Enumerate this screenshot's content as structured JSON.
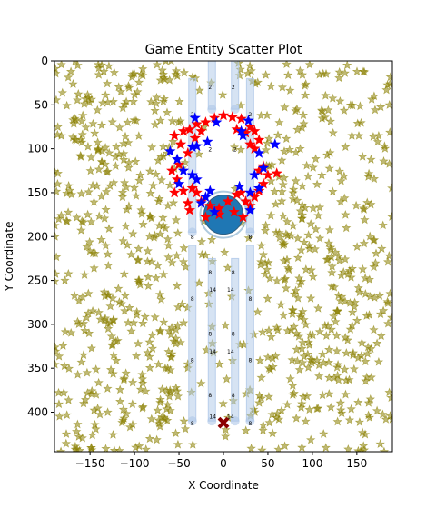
{
  "chart_data": {
    "type": "scatter",
    "title": "Game Entity Scatter Plot",
    "xlabel": "X Coordinate",
    "ylabel": "Y Coordinate",
    "xlim": [
      -190,
      190
    ],
    "ylim": [
      445,
      0
    ],
    "y_inverted": true,
    "grid": false,
    "xticks": [
      -150,
      -100,
      -50,
      0,
      50,
      100,
      150
    ],
    "yticks": [
      0,
      50,
      100,
      150,
      200,
      250,
      300,
      350,
      400
    ],
    "colors": {
      "background_stars": "#8b8000",
      "red_team": "#ff0000",
      "blue_team": "#0000ff",
      "lanes": "#aec7e8",
      "central_object": "#1f77b4",
      "marker_x": "#8b0000"
    },
    "central_object": {
      "x": 0,
      "y": 175,
      "radius": 22,
      "shape": "circle"
    },
    "marker_x": {
      "x": 0,
      "y": 412,
      "shape": "x"
    },
    "lanes": [
      {
        "x": -13,
        "y_start": 0,
        "y_end": 55,
        "label": "2"
      },
      {
        "x": 13,
        "y_start": 0,
        "y_end": 55,
        "label": "2"
      },
      {
        "x": -35,
        "y_start": 20,
        "y_end": 195,
        "label": "2"
      },
      {
        "x": 30,
        "y_start": 20,
        "y_end": 195,
        "label": "2"
      },
      {
        "x": -35,
        "y_start": 210,
        "y_end": 410,
        "label": "8"
      },
      {
        "x": 30,
        "y_start": 210,
        "y_end": 410,
        "label": "8"
      },
      {
        "x": -13,
        "y_start": 225,
        "y_end": 410,
        "label": "8"
      },
      {
        "x": 13,
        "y_start": 225,
        "y_end": 410,
        "label": "8"
      }
    ],
    "lane_labels": [
      {
        "x": -15,
        "y": 32,
        "text": "2"
      },
      {
        "x": 11,
        "y": 32,
        "text": "2"
      },
      {
        "x": -35,
        "y": 63,
        "text": "2"
      },
      {
        "x": 30,
        "y": 63,
        "text": "2"
      },
      {
        "x": -15,
        "y": 103,
        "text": "2"
      },
      {
        "x": 13,
        "y": 103,
        "text": "2"
      },
      {
        "x": -35,
        "y": 203,
        "text": "8"
      },
      {
        "x": 30,
        "y": 203,
        "text": "8"
      },
      {
        "x": -15,
        "y": 243,
        "text": "8"
      },
      {
        "x": 11,
        "y": 243,
        "text": "8"
      },
      {
        "x": -35,
        "y": 273,
        "text": "8"
      },
      {
        "x": 30,
        "y": 273,
        "text": "8"
      },
      {
        "x": -12,
        "y": 263,
        "text": "14"
      },
      {
        "x": 8,
        "y": 263,
        "text": "14"
      },
      {
        "x": -15,
        "y": 313,
        "text": "8"
      },
      {
        "x": 11,
        "y": 313,
        "text": "8"
      },
      {
        "x": -35,
        "y": 343,
        "text": "8"
      },
      {
        "x": 30,
        "y": 343,
        "text": "8"
      },
      {
        "x": -12,
        "y": 333,
        "text": "14"
      },
      {
        "x": 8,
        "y": 333,
        "text": "14"
      },
      {
        "x": -15,
        "y": 383,
        "text": "8"
      },
      {
        "x": 11,
        "y": 383,
        "text": "8"
      },
      {
        "x": -35,
        "y": 415,
        "text": "8"
      },
      {
        "x": 30,
        "y": 415,
        "text": "8"
      },
      {
        "x": -12,
        "y": 407,
        "text": "14"
      },
      {
        "x": 8,
        "y": 407,
        "text": "14"
      }
    ],
    "red_team": [
      [
        -55,
        85
      ],
      [
        -45,
        80
      ],
      [
        -38,
        78
      ],
      [
        -30,
        72
      ],
      [
        -20,
        70
      ],
      [
        -10,
        65
      ],
      [
        0,
        62
      ],
      [
        10,
        64
      ],
      [
        20,
        66
      ],
      [
        30,
        75
      ],
      [
        35,
        80
      ],
      [
        40,
        90
      ],
      [
        30,
        95
      ],
      [
        35,
        100
      ],
      [
        45,
        120
      ],
      [
        40,
        125
      ],
      [
        50,
        130
      ],
      [
        60,
        128
      ],
      [
        -48,
        95
      ],
      [
        -40,
        105
      ],
      [
        -50,
        118
      ],
      [
        -58,
        125
      ],
      [
        -52,
        135
      ],
      [
        -45,
        148
      ],
      [
        -55,
        150
      ],
      [
        -35,
        145
      ],
      [
        -30,
        150
      ],
      [
        -40,
        162
      ],
      [
        -38,
        170
      ],
      [
        -25,
        160
      ],
      [
        -15,
        165
      ],
      [
        -5,
        168
      ],
      [
        5,
        160
      ],
      [
        15,
        152
      ],
      [
        20,
        150
      ],
      [
        25,
        160
      ],
      [
        30,
        165
      ],
      [
        35,
        155
      ],
      [
        40,
        148
      ],
      [
        45,
        140
      ],
      [
        -20,
        178
      ],
      [
        -5,
        175
      ],
      [
        12,
        172
      ],
      [
        22,
        178
      ],
      [
        -25,
        80
      ],
      [
        15,
        78
      ],
      [
        25,
        82
      ],
      [
        -32,
        88
      ]
    ],
    "blue_team": [
      [
        -60,
        103
      ],
      [
        -52,
        112
      ],
      [
        -32,
        65
      ],
      [
        -35,
        98
      ],
      [
        -30,
        97
      ],
      [
        -18,
        92
      ],
      [
        -8,
        70
      ],
      [
        20,
        80
      ],
      [
        28,
        68
      ],
      [
        22,
        85
      ],
      [
        40,
        105
      ],
      [
        58,
        95
      ],
      [
        45,
        122
      ],
      [
        35,
        130
      ],
      [
        40,
        145
      ],
      [
        30,
        150
      ],
      [
        -35,
        130
      ],
      [
        -30,
        135
      ],
      [
        -50,
        140
      ],
      [
        -15,
        148
      ],
      [
        -20,
        155
      ],
      [
        -25,
        162
      ],
      [
        30,
        170
      ],
      [
        -45,
        125
      ],
      [
        -10,
        172
      ],
      [
        18,
        143
      ]
    ]
  }
}
